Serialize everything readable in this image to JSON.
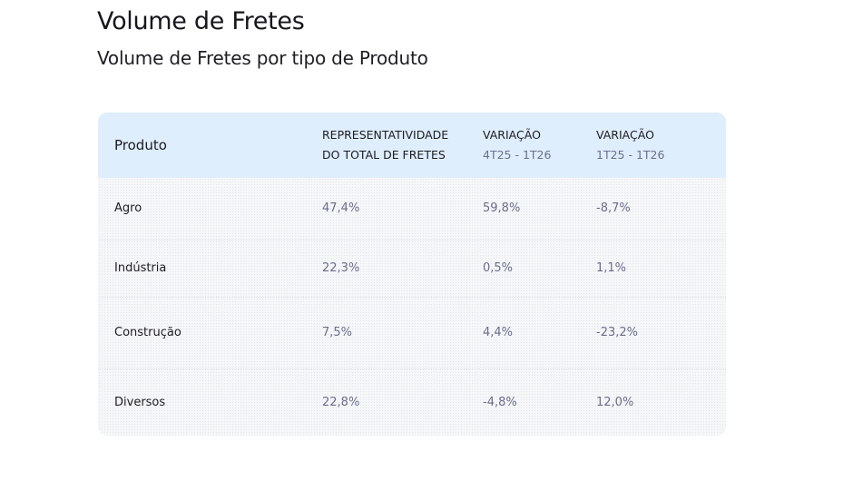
{
  "title": "Volume de Fretes",
  "subtitle": "Volume de Fretes por tipo de Produto",
  "chart_data": {
    "type": "table",
    "columns": [
      {
        "line1": "Produto",
        "line2": ""
      },
      {
        "line1": "REPRESENTATIVIDADE",
        "line2": "DO TOTAL DE FRETES"
      },
      {
        "line1": "VARIAÇÃO",
        "line2": "4T25 - 1T26"
      },
      {
        "line1": "VARIAÇÃO",
        "line2": "1T25 - 1T26"
      }
    ],
    "rows": [
      [
        "Agro",
        "47,4%",
        "59,8%",
        "-8,7%"
      ],
      [
        "Indústria",
        "22,3%",
        "0,5%",
        "1,1%"
      ],
      [
        "Construção",
        "7,5%",
        "4,4%",
        "-23,2%"
      ],
      [
        "Diversos",
        "22,8%",
        "-4,8%",
        "12,0%"
      ]
    ]
  },
  "colors": {
    "header_bg": "#dfeefd",
    "muted_text": "#6a6e8c",
    "body_text": "#1d1d24"
  }
}
